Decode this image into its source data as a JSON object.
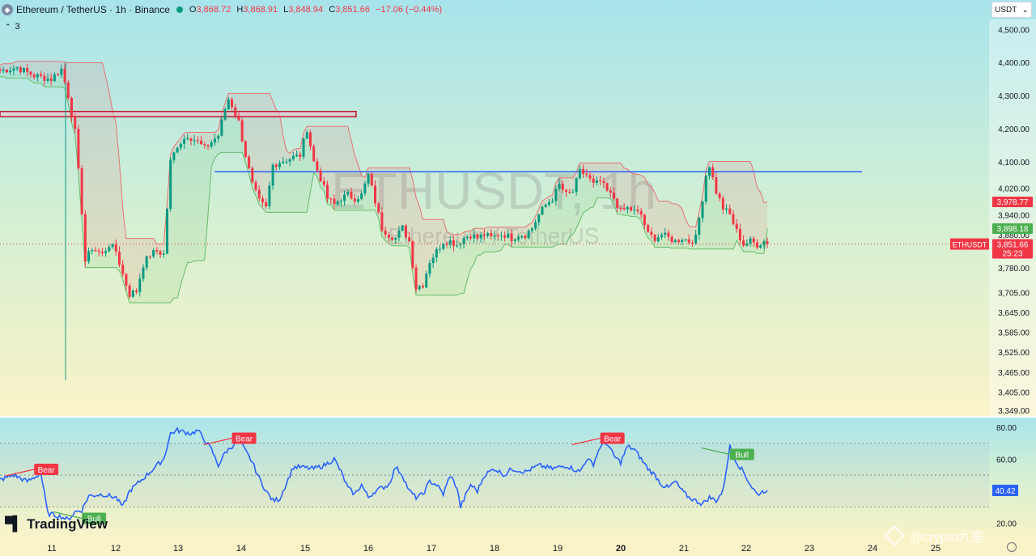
{
  "header": {
    "symbol": "Ethereum / TetherUS · 1h · Binance",
    "ohlc": {
      "o_label": "O",
      "o": "3,868.72",
      "h_label": "H",
      "h": "3,868.91",
      "l_label": "L",
      "l": "3,848.94",
      "c_label": "C",
      "c": "3,851.66",
      "change": "−17.06 (−0.44%)"
    },
    "indicator_count": "3"
  },
  "currency_button": "USDT",
  "watermark": {
    "line1": "ETHUSDT, 1h",
    "line2": "Ethereum / TetherUS"
  },
  "branding": {
    "tradingview": "TradingView",
    "author": "@crypto九笙"
  },
  "colors": {
    "up": "#089981",
    "down": "#f23645",
    "rsi": "#2962ff",
    "level_line": "#2962ff",
    "resistance_box": "#b71c2a"
  },
  "chart_data": [
    {
      "type": "candlestick",
      "pair": "ETHUSDT",
      "interval": "1h",
      "x_ticks": [
        "11",
        "12",
        "13",
        "14",
        "15",
        "16",
        "17",
        "18",
        "19",
        "20",
        "21",
        "22",
        "23",
        "24",
        "25"
      ],
      "y_ticks": [
        "4,500.00",
        "4,400.00",
        "4,300.00",
        "4,200.00",
        "4,100.00",
        "4,020.00",
        "3,940.00",
        "3,880.00",
        "3,780.00",
        "3,705.00",
        "3,645.00",
        "3,585.00",
        "3,525.00",
        "3,465.00",
        "3,405.00",
        "3,349.00"
      ],
      "ylim": [
        3330,
        4530
      ],
      "last_price": 3851.66,
      "last_price_label": "3,851.66",
      "countdown": "25:23",
      "symbol_tag": "ETHUSDT",
      "upper_band_value": 3978.77,
      "upper_band_label": "3,978.77",
      "lower_band_value": 3898.18,
      "lower_band_label": "3,898.18",
      "horizontal_level": 4070,
      "resistance_zone": [
        4236,
        4252
      ],
      "close_path": [
        {
          "t": 0,
          "p": 4375
        },
        {
          "t": 5,
          "p": 4385
        },
        {
          "t": 10,
          "p": 4360
        },
        {
          "t": 15,
          "p": 4350
        },
        {
          "t": 18,
          "p": 4380
        },
        {
          "t": 20,
          "p": 4300
        },
        {
          "t": 22,
          "p": 4190
        },
        {
          "t": 24,
          "p": 3950
        },
        {
          "t": 25,
          "p": 3800
        },
        {
          "t": 27,
          "p": 3840
        },
        {
          "t": 30,
          "p": 3820
        },
        {
          "t": 32,
          "p": 3850
        },
        {
          "t": 34,
          "p": 3830
        },
        {
          "t": 36,
          "p": 3760
        },
        {
          "t": 38,
          "p": 3700
        },
        {
          "t": 40,
          "p": 3710
        },
        {
          "t": 42,
          "p": 3790
        },
        {
          "t": 44,
          "p": 3820
        },
        {
          "t": 46,
          "p": 3830
        },
        {
          "t": 48,
          "p": 3820
        },
        {
          "t": 49,
          "p": 3960
        },
        {
          "t": 50,
          "p": 4100
        },
        {
          "t": 52,
          "p": 4150
        },
        {
          "t": 55,
          "p": 4180
        },
        {
          "t": 58,
          "p": 4160
        },
        {
          "t": 60,
          "p": 4140
        },
        {
          "t": 62,
          "p": 4160
        },
        {
          "t": 64,
          "p": 4180
        },
        {
          "t": 66,
          "p": 4260
        },
        {
          "t": 67,
          "p": 4290
        },
        {
          "t": 68,
          "p": 4270
        },
        {
          "t": 70,
          "p": 4220
        },
        {
          "t": 72,
          "p": 4120
        },
        {
          "t": 74,
          "p": 4030
        },
        {
          "t": 76,
          "p": 3980
        },
        {
          "t": 78,
          "p": 3960
        },
        {
          "t": 80,
          "p": 4090
        },
        {
          "t": 82,
          "p": 4100
        },
        {
          "t": 85,
          "p": 4110
        },
        {
          "t": 88,
          "p": 4120
        },
        {
          "t": 90,
          "p": 4200
        },
        {
          "t": 92,
          "p": 4100
        },
        {
          "t": 94,
          "p": 4050
        },
        {
          "t": 96,
          "p": 3990
        },
        {
          "t": 98,
          "p": 3970
        },
        {
          "t": 100,
          "p": 3990
        },
        {
          "t": 102,
          "p": 4000
        },
        {
          "t": 104,
          "p": 3990
        },
        {
          "t": 106,
          "p": 4000
        },
        {
          "t": 108,
          "p": 4060
        },
        {
          "t": 110,
          "p": 3980
        },
        {
          "t": 112,
          "p": 3900
        },
        {
          "t": 114,
          "p": 3880
        },
        {
          "t": 116,
          "p": 3870
        },
        {
          "t": 118,
          "p": 3900
        },
        {
          "t": 120,
          "p": 3860
        },
        {
          "t": 122,
          "p": 3720
        },
        {
          "t": 124,
          "p": 3730
        },
        {
          "t": 126,
          "p": 3800
        },
        {
          "t": 128,
          "p": 3830
        },
        {
          "t": 130,
          "p": 3860
        },
        {
          "t": 132,
          "p": 3860
        },
        {
          "t": 134,
          "p": 3850
        },
        {
          "t": 136,
          "p": 3870
        },
        {
          "t": 138,
          "p": 3880
        },
        {
          "t": 140,
          "p": 3870
        },
        {
          "t": 142,
          "p": 3880
        },
        {
          "t": 144,
          "p": 3870
        },
        {
          "t": 146,
          "p": 3880
        },
        {
          "t": 148,
          "p": 3880
        },
        {
          "t": 150,
          "p": 3870
        },
        {
          "t": 152,
          "p": 3880
        },
        {
          "t": 154,
          "p": 3880
        },
        {
          "t": 156,
          "p": 3900
        },
        {
          "t": 158,
          "p": 3940
        },
        {
          "t": 160,
          "p": 3970
        },
        {
          "t": 162,
          "p": 3990
        },
        {
          "t": 164,
          "p": 4030
        },
        {
          "t": 166,
          "p": 4000
        },
        {
          "t": 168,
          "p": 4010
        },
        {
          "t": 170,
          "p": 4070
        },
        {
          "t": 172,
          "p": 4060
        },
        {
          "t": 174,
          "p": 4030
        },
        {
          "t": 176,
          "p": 4040
        },
        {
          "t": 178,
          "p": 4010
        },
        {
          "t": 180,
          "p": 3990
        },
        {
          "t": 182,
          "p": 3950
        },
        {
          "t": 184,
          "p": 3960
        },
        {
          "t": 186,
          "p": 3950
        },
        {
          "t": 188,
          "p": 3940
        },
        {
          "t": 190,
          "p": 3880
        },
        {
          "t": 192,
          "p": 3870
        },
        {
          "t": 194,
          "p": 3880
        },
        {
          "t": 196,
          "p": 3870
        },
        {
          "t": 198,
          "p": 3860
        },
        {
          "t": 200,
          "p": 3870
        },
        {
          "t": 202,
          "p": 3860
        },
        {
          "t": 204,
          "p": 3870
        },
        {
          "t": 206,
          "p": 3990
        },
        {
          "t": 207,
          "p": 4060
        },
        {
          "t": 208,
          "p": 4090
        },
        {
          "t": 210,
          "p": 4010
        },
        {
          "t": 212,
          "p": 3960
        },
        {
          "t": 214,
          "p": 3940
        },
        {
          "t": 216,
          "p": 3890
        },
        {
          "t": 218,
          "p": 3850
        },
        {
          "t": 220,
          "p": 3860
        },
        {
          "t": 222,
          "p": 3850
        },
        {
          "t": 224,
          "p": 3860
        },
        {
          "t": 225,
          "p": 3852
        }
      ]
    },
    {
      "type": "line",
      "name": "RSI",
      "ylim": [
        10,
        85
      ],
      "y_ticks": [
        "80.00",
        "60.00",
        "20.00"
      ],
      "reference_levels": [
        70,
        50,
        30
      ],
      "last_value": 40.42,
      "last_value_label": "40.42",
      "annotations": [
        {
          "text": "Bear",
          "kind": "bear",
          "t": 10
        },
        {
          "text": "Bull",
          "kind": "bull",
          "t": 24
        },
        {
          "text": "Bear",
          "kind": "bear",
          "t": 68
        },
        {
          "text": "Bear",
          "kind": "bear",
          "t": 176
        },
        {
          "text": "Bull",
          "kind": "bull",
          "t": 214
        }
      ],
      "path": [
        {
          "t": 0,
          "v": 47
        },
        {
          "t": 4,
          "v": 50
        },
        {
          "t": 8,
          "v": 46
        },
        {
          "t": 12,
          "v": 51
        },
        {
          "t": 14,
          "v": 26
        },
        {
          "t": 18,
          "v": 24
        },
        {
          "t": 20,
          "v": 22
        },
        {
          "t": 22,
          "v": 27
        },
        {
          "t": 24,
          "v": 28
        },
        {
          "t": 26,
          "v": 37
        },
        {
          "t": 30,
          "v": 38
        },
        {
          "t": 34,
          "v": 36
        },
        {
          "t": 36,
          "v": 30
        },
        {
          "t": 38,
          "v": 40
        },
        {
          "t": 40,
          "v": 44
        },
        {
          "t": 44,
          "v": 52
        },
        {
          "t": 48,
          "v": 60
        },
        {
          "t": 50,
          "v": 76
        },
        {
          "t": 52,
          "v": 78
        },
        {
          "t": 56,
          "v": 76
        },
        {
          "t": 58,
          "v": 78
        },
        {
          "t": 62,
          "v": 66
        },
        {
          "t": 64,
          "v": 56
        },
        {
          "t": 66,
          "v": 64
        },
        {
          "t": 70,
          "v": 72
        },
        {
          "t": 72,
          "v": 65
        },
        {
          "t": 74,
          "v": 58
        },
        {
          "t": 76,
          "v": 48
        },
        {
          "t": 78,
          "v": 40
        },
        {
          "t": 80,
          "v": 34
        },
        {
          "t": 82,
          "v": 35
        },
        {
          "t": 84,
          "v": 45
        },
        {
          "t": 86,
          "v": 55
        },
        {
          "t": 88,
          "v": 55
        },
        {
          "t": 92,
          "v": 54
        },
        {
          "t": 95,
          "v": 56
        },
        {
          "t": 98,
          "v": 60
        },
        {
          "t": 100,
          "v": 52
        },
        {
          "t": 102,
          "v": 42
        },
        {
          "t": 104,
          "v": 38
        },
        {
          "t": 106,
          "v": 44
        },
        {
          "t": 108,
          "v": 36
        },
        {
          "t": 110,
          "v": 40
        },
        {
          "t": 114,
          "v": 44
        },
        {
          "t": 116,
          "v": 55
        },
        {
          "t": 118,
          "v": 50
        },
        {
          "t": 120,
          "v": 40
        },
        {
          "t": 122,
          "v": 36
        },
        {
          "t": 124,
          "v": 38
        },
        {
          "t": 126,
          "v": 46
        },
        {
          "t": 128,
          "v": 44
        },
        {
          "t": 130,
          "v": 38
        },
        {
          "t": 132,
          "v": 50
        },
        {
          "t": 134,
          "v": 42
        },
        {
          "t": 135,
          "v": 30
        },
        {
          "t": 138,
          "v": 44
        },
        {
          "t": 140,
          "v": 40
        },
        {
          "t": 142,
          "v": 50
        },
        {
          "t": 145,
          "v": 54
        },
        {
          "t": 148,
          "v": 50
        },
        {
          "t": 150,
          "v": 54
        },
        {
          "t": 154,
          "v": 52
        },
        {
          "t": 158,
          "v": 56
        },
        {
          "t": 162,
          "v": 54
        },
        {
          "t": 166,
          "v": 56
        },
        {
          "t": 170,
          "v": 52
        },
        {
          "t": 172,
          "v": 60
        },
        {
          "t": 174,
          "v": 57
        },
        {
          "t": 176,
          "v": 68
        },
        {
          "t": 178,
          "v": 70
        },
        {
          "t": 180,
          "v": 62
        },
        {
          "t": 182,
          "v": 58
        },
        {
          "t": 184,
          "v": 68
        },
        {
          "t": 186,
          "v": 66
        },
        {
          "t": 188,
          "v": 60
        },
        {
          "t": 190,
          "v": 54
        },
        {
          "t": 192,
          "v": 50
        },
        {
          "t": 194,
          "v": 44
        },
        {
          "t": 196,
          "v": 42
        },
        {
          "t": 198,
          "v": 46
        },
        {
          "t": 200,
          "v": 40
        },
        {
          "t": 202,
          "v": 36
        },
        {
          "t": 204,
          "v": 34
        },
        {
          "t": 206,
          "v": 32
        },
        {
          "t": 208,
          "v": 36
        },
        {
          "t": 210,
          "v": 34
        },
        {
          "t": 212,
          "v": 40
        },
        {
          "t": 214,
          "v": 68
        },
        {
          "t": 216,
          "v": 58
        },
        {
          "t": 218,
          "v": 52
        },
        {
          "t": 220,
          "v": 44
        },
        {
          "t": 222,
          "v": 38
        },
        {
          "t": 224,
          "v": 40
        },
        {
          "t": 225,
          "v": 41
        }
      ]
    }
  ]
}
